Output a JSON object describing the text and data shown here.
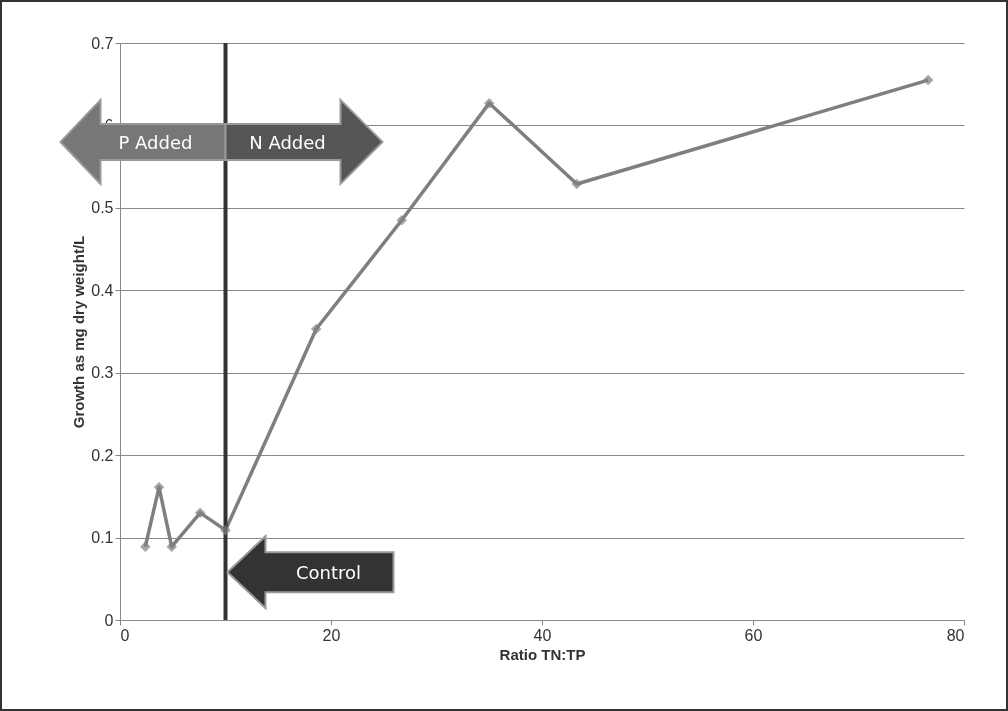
{
  "chart_data": {
    "type": "line",
    "xlabel": "Ratio  TN:TP",
    "ylabel": "Growth as mg dry weight/L",
    "x": [
      2.4,
      3.7,
      4.9,
      7.6,
      10.0,
      18.6,
      26.7,
      35.0,
      43.3,
      76.6
    ],
    "series": [
      {
        "color": "#7f7f7f",
        "values": [
          0.089,
          0.161,
          0.089,
          0.13,
          0.109,
          0.353,
          0.485,
          0.627,
          0.529,
          0.655
        ]
      }
    ],
    "xlim": [
      0,
      80
    ],
    "xticks": [
      0,
      20,
      40,
      60,
      80
    ],
    "ylim": [
      0,
      0.7
    ],
    "yticks": [
      0,
      0.1,
      0.2,
      0.3,
      0.4,
      0.5,
      0.6,
      0.7
    ],
    "grid": "y",
    "marker": "diamond",
    "line_style": "solid",
    "legend": false,
    "ref_lines": [
      {
        "axis": "x",
        "value": 10,
        "color": "#333333"
      }
    ],
    "annotations": [
      "P Added",
      "N Added",
      "Control"
    ]
  }
}
